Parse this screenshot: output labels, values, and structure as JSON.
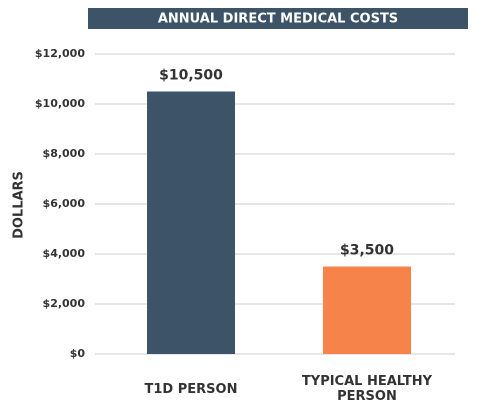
{
  "chart_data": {
    "type": "bar",
    "title": "ANNUAL DIRECT MEDICAL COSTS",
    "ylabel": "DOLLARS",
    "categories": [
      "T1D PERSON",
      "TYPICAL HEALTHY PERSON"
    ],
    "values": [
      10500,
      3500
    ],
    "value_labels": [
      "$10,500",
      "$3,500"
    ],
    "colors": [
      "#3d5468",
      "#f6834a"
    ],
    "ylim": [
      0,
      12000
    ],
    "yticks": [
      {
        "value": 0,
        "label": "$0"
      },
      {
        "value": 2000,
        "label": "$2,000"
      },
      {
        "value": 4000,
        "label": "$4,000"
      },
      {
        "value": 6000,
        "label": "$6,000"
      },
      {
        "value": 8000,
        "label": "$8,000"
      },
      {
        "value": 10000,
        "label": "$10,000"
      },
      {
        "value": 12000,
        "label": "$12,000"
      }
    ],
    "grid": true
  }
}
